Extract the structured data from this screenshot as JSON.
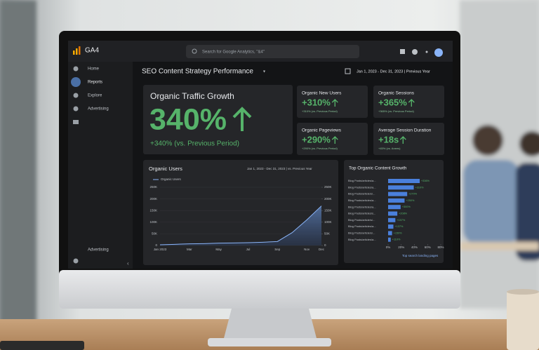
{
  "app": {
    "logo": "GA4",
    "search": "Search for Google Analytics, \"&4\""
  },
  "sidebar": {
    "items": [
      "Home",
      "Reports",
      "Explore",
      "Advertising"
    ],
    "footer": "Advertising"
  },
  "header": {
    "title": "SEO Content Strategy Performance",
    "date_range": "Jan 1, 2023 - Dec 31, 2023 | Previous Year"
  },
  "hero": {
    "title": "Organic Traffic Growth",
    "value": "340%",
    "comparison": "+340% (vs. Previous Period)"
  },
  "cards": [
    {
      "title": "Organic New Users",
      "value": "+310%",
      "comparison": "+310% (vs. Previous Period)"
    },
    {
      "title": "Organic Sessions",
      "value": "+365%",
      "comparison": "+365% (vs. Previous Period)"
    },
    {
      "title": "Organic Pageviews",
      "value": "+290%",
      "comparison": "+290% (vs. Previous Period)"
    },
    {
      "title": "Average Session Duration",
      "value": "+18s",
      "comparison": "+45% (vs. Anees)"
    }
  ],
  "chart_data": [
    {
      "type": "line",
      "title": "Organic Users",
      "subtitle": "Jan 1, 2023 - Dec 31, 2023 | vs. Previous Year",
      "categories": [
        "Jan 2023",
        null,
        "Mar",
        null,
        "May",
        null,
        "Jul",
        null,
        "Sep",
        null,
        "Nov",
        "Dec"
      ],
      "series": [
        {
          "name": "Organic Users",
          "color": "#8ab4f8",
          "values": [
            3000,
            5000,
            7000,
            8000,
            10000,
            11000,
            12000,
            14000,
            17000,
            55000,
            110000,
            170000
          ]
        }
      ],
      "ylim": [
        0,
        250000
      ],
      "yticks": [
        0,
        {
          "value": 50000,
          "label": "50K"
        },
        {
          "value": 100000,
          "label": "100K"
        },
        {
          "value": 150000,
          "label": "150K"
        },
        {
          "value": 200000,
          "label": "200K"
        },
        {
          "value": 250000,
          "label": "250K"
        }
      ],
      "y2lim": [
        0,
        250000
      ],
      "y2ticks": [
        0,
        {
          "value": 50000,
          "label": "50K"
        },
        {
          "value": 100000,
          "label": "100K"
        },
        {
          "value": 150000,
          "label": "150K"
        },
        {
          "value": 200000,
          "label": "200K"
        },
        {
          "value": 250000,
          "label": "250K"
        }
      ]
    },
    {
      "type": "bar",
      "orientation": "horizontal",
      "title": "Top Organic Content Growth",
      "categories": [
        "Blog Posts/articles/a...",
        "Blog Posts/articles/a...",
        "Blog Posts/article/s/...",
        "Blog Posts/articles/a...",
        "Blog Posts/articles/a...",
        "Blog Posts/articles/s...",
        "Blog Posts/article/s/...",
        "Blog Posts/articles/a...",
        "Blog Posts/article/s/...",
        "Blog Posts/articles/a..."
      ],
      "values": [
        48,
        39,
        29,
        25,
        19,
        14,
        11,
        8,
        6,
        4
      ],
      "annotations": [
        "+336%",
        "+310%",
        "+270%",
        "+250%",
        "+300%",
        "+208%",
        "+157%",
        "+137%",
        "+150%",
        "+110%"
      ],
      "color": "#4a80dc",
      "xlim": [
        0,
        80
      ],
      "xticks": [
        {
          "value": 0,
          "label": "0%"
        },
        {
          "value": 20,
          "label": "20%"
        },
        {
          "value": 40,
          "label": "40%"
        },
        {
          "value": 60,
          "label": "60%"
        },
        {
          "value": 80,
          "label": "80%"
        }
      ],
      "link": "Top search landing pages"
    }
  ]
}
